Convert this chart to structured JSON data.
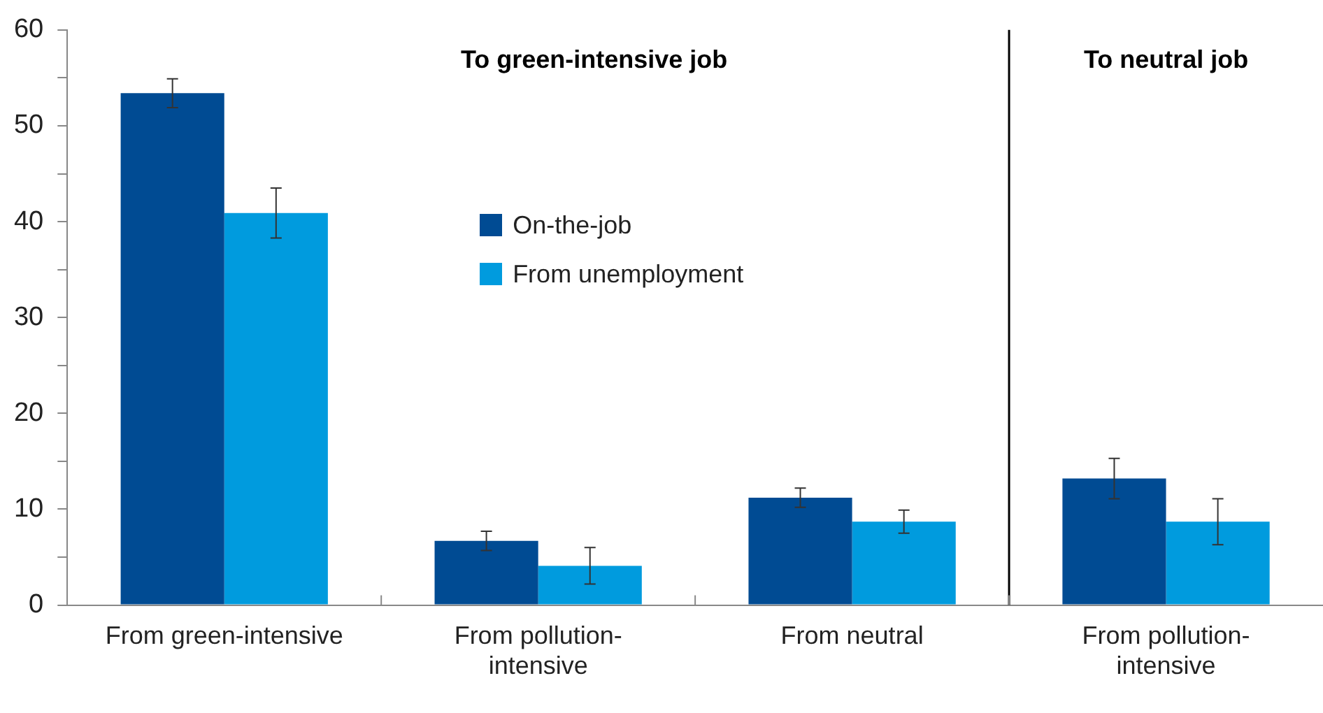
{
  "chart_data": {
    "type": "bar",
    "categories": [
      "From green-intensive",
      "From pollution-intensive",
      "From neutral",
      "From pollution-intensive"
    ],
    "series": [
      {
        "name": "On-the-job",
        "color": "#004b93",
        "values": [
          53.4,
          6.7,
          11.2,
          13.2
        ],
        "errors": [
          1.5,
          1.0,
          1.0,
          2.1
        ]
      },
      {
        "name": "From unemployment",
        "color": "#009bde",
        "values": [
          40.9,
          4.1,
          8.7,
          8.7
        ],
        "errors": [
          2.6,
          1.9,
          1.2,
          2.4
        ]
      }
    ],
    "ylim": [
      0,
      60
    ],
    "yticks": [
      0,
      {
        "value": 5,
        "label": null
      },
      10,
      {
        "value": 15,
        "label": null
      },
      20,
      {
        "value": 25,
        "label": null
      },
      30,
      {
        "value": 35,
        "label": null
      },
      40,
      {
        "value": 45,
        "label": null
      },
      50,
      {
        "value": 55,
        "label": null
      },
      60
    ],
    "annotations": [
      "To green-intensive job",
      "To neutral job"
    ],
    "grid": false,
    "legend": "center"
  }
}
